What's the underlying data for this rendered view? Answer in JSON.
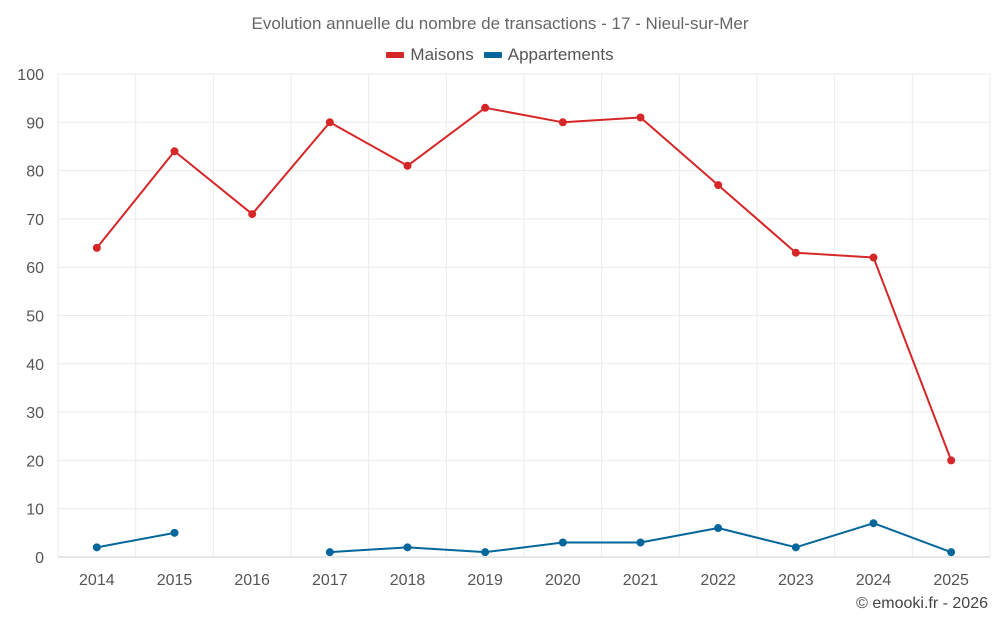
{
  "chart_data": {
    "type": "line",
    "title": "Evolution annuelle du nombre de transactions - 17 - Nieul-sur-Mer",
    "xlabel": "",
    "ylabel": "",
    "categories": [
      "2014",
      "2015",
      "2016",
      "2017",
      "2018",
      "2019",
      "2020",
      "2021",
      "2022",
      "2023",
      "2024",
      "2025"
    ],
    "ylim": [
      0,
      100
    ],
    "yticks": [
      0,
      10,
      20,
      30,
      40,
      50,
      60,
      70,
      80,
      90,
      100
    ],
    "grid": true,
    "legend_position": "top-center",
    "series": [
      {
        "name": "Maisons",
        "color": "#d62728",
        "values": [
          64,
          84,
          71,
          90,
          81,
          93,
          90,
          91,
          77,
          63,
          62,
          20
        ]
      },
      {
        "name": "Appartements",
        "color": "#04679b",
        "values": [
          2,
          5,
          null,
          1,
          2,
          1,
          3,
          3,
          6,
          2,
          7,
          1
        ]
      }
    ]
  },
  "legend": {
    "items": [
      {
        "label": "Maisons",
        "color": "#d62728"
      },
      {
        "label": "Appartements",
        "color": "#04679b"
      }
    ]
  },
  "credit": "© emooki.fr - 2026"
}
